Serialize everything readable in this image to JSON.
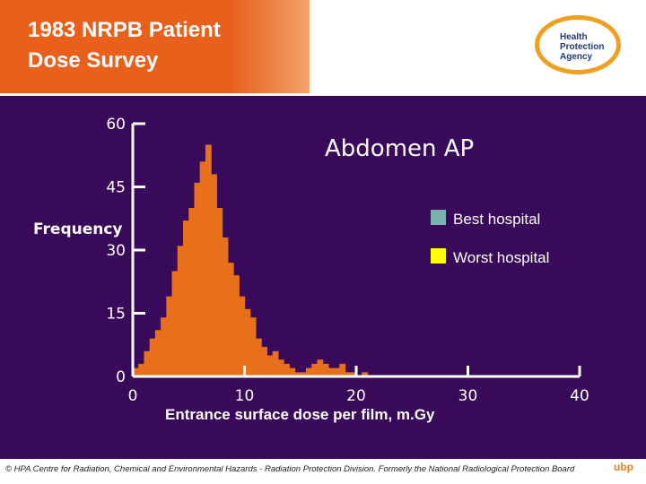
{
  "header": {
    "title_line1": "1983 NRPB Patient",
    "title_line2": "Dose Survey",
    "logo_line1": "Health",
    "logo_line2": "Protection",
    "logo_line3": "Agency"
  },
  "footer": {
    "text": "© HPA Centre for Radiation, Chemical and Environmental Hazards - Radiation Protection Division. Formerly the National Radiological Protection Board",
    "mark": "ubp"
  },
  "colors": {
    "panel_bg": "#3a0a5a",
    "title_bg": "#e8601c",
    "histogram": "#e8701a",
    "best": "#7fb0b0",
    "worst": "#ffff00",
    "text": "#ffffff"
  },
  "chart_data": {
    "type": "bar",
    "title": "Abdomen AP",
    "xlabel": "Entrance surface dose per film, m.Gy",
    "ylabel": "Frequency",
    "xlim": [
      0,
      40
    ],
    "ylim": [
      0,
      60
    ],
    "xticks": [
      "0",
      "10",
      "20",
      "30",
      "40"
    ],
    "yticks": [
      "0",
      "15",
      "30",
      "45",
      "60"
    ],
    "bin_width": 1,
    "series": [
      {
        "values": [
          2,
          3,
          6,
          9,
          11,
          14,
          19,
          25,
          31,
          37,
          40,
          46,
          51,
          55,
          48,
          40,
          33,
          27,
          24,
          19,
          16,
          14,
          9,
          7,
          5,
          6,
          4,
          3,
          2,
          1,
          1,
          2,
          3,
          4,
          3,
          2,
          2,
          3,
          1,
          1,
          0,
          1,
          0,
          0,
          0,
          0,
          0,
          0,
          0,
          0,
          0,
          0,
          0,
          0,
          0,
          0,
          0,
          0,
          0,
          0,
          0,
          0,
          0,
          0,
          0,
          0,
          0,
          0,
          0,
          0
        ]
      }
    ],
    "legend": [
      {
        "name": "Best hospital",
        "color": "#7fb0b0"
      },
      {
        "name": "Worst hospital",
        "color": "#ffff00"
      }
    ],
    "legend_position": "top-right",
    "grid": false
  }
}
